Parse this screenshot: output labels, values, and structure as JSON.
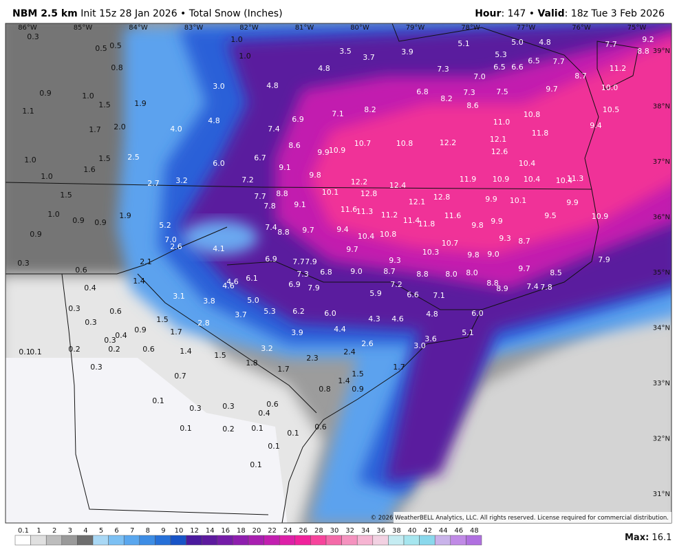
{
  "header": {
    "model": "NBM 2.5 km",
    "init": "Init 15z 28 Jan 2026 • Total Snow (Inches)",
    "hour_key": "Hour",
    "hour_text": ": 147 • ",
    "valid_key": "Valid",
    "valid_text": ": 18z Tue 3 Feb 2026"
  },
  "longitude_labels": [
    "86°W",
    "85°W",
    "84°W",
    "83°W",
    "82°W",
    "81°W",
    "80°W",
    "79°W",
    "78°W",
    "77°W",
    "76°W",
    "75°W"
  ],
  "latitude_labels": [
    "39°N",
    "38°N",
    "37°N",
    "36°N",
    "35°N",
    "34°N",
    "33°N",
    "32°N",
    "31°N"
  ],
  "snow_values": [
    "0.3",
    "0.5",
    "0.5",
    "0.8",
    "1.0",
    "1.0",
    "3.5",
    "3.7",
    "3.9",
    "5.1",
    "5.0",
    "4.8",
    "7.7",
    "9.2",
    "8.8",
    "5.3",
    "6.5",
    "6.5",
    "6.6",
    "7.7",
    "8.7",
    "11.2",
    "4.8",
    "7.3",
    "7.0",
    "7.5",
    "9.7",
    "10.0",
    "0.9",
    "1.0",
    "1.5",
    "1.9",
    "3.0",
    "4.8",
    "6.8",
    "8.2",
    "7.3",
    "8.6",
    "8.2",
    "1.1",
    "1.7",
    "2.0",
    "4.0",
    "4.8",
    "6.9",
    "7.1",
    "7.4",
    "10.8",
    "11.0",
    "10.5",
    "9.4",
    "11.8",
    "8.6",
    "9.9",
    "10.9",
    "10.7",
    "10.8",
    "12.2",
    "12.1",
    "12.6",
    "1.0",
    "1.5",
    "2.5",
    "6.0",
    "6.7",
    "9.1",
    "9.8",
    "10.4",
    "1.6",
    "1.0",
    "2.7",
    "3.2",
    "7.2",
    "12.2",
    "12.4",
    "11.9",
    "10.9",
    "10.4",
    "10.4",
    "11.3",
    "1.5",
    "7.7",
    "8.8",
    "10.1",
    "12.8",
    "12.8",
    "12.1",
    "9.9",
    "10.1",
    "9.9",
    "7.8",
    "9.1",
    "11.6",
    "11.3",
    "11.2",
    "1.0",
    "0.9",
    "0.9",
    "1.9",
    "5.2",
    "11.4",
    "11.8",
    "11.6",
    "9.5",
    "10.9",
    "0.9",
    "7.4",
    "8.8",
    "9.7",
    "9.4",
    "9.8",
    "9.9",
    "7.0",
    "2.6",
    "4.1",
    "10.4",
    "10.8",
    "9.3",
    "8.7",
    "10.7",
    "9.7",
    "10.3",
    "9.8",
    "9.0",
    "2.1",
    "6.9",
    "7.7",
    "7.9",
    "9.3",
    "7.9",
    "0.3",
    "0.6",
    "7.3",
    "6.8",
    "9.0",
    "8.7",
    "8.8",
    "8.0",
    "8.0",
    "9.7",
    "8.5",
    "0.4",
    "1.4",
    "4.6",
    "6.1",
    "4.6",
    "6.9",
    "7.9",
    "7.2",
    "8.8",
    "8.9",
    "7.4",
    "7.8",
    "3.1",
    "3.8",
    "5.0",
    "5.9",
    "6.6",
    "7.1",
    "0.3",
    "0.6",
    "5.3",
    "6.2",
    "6.0",
    "4.8",
    "6.0",
    "3.7",
    "1.5",
    "0.3",
    "2.8",
    "4.3",
    "4.6",
    "0.4",
    "0.9",
    "1.7",
    "3.9",
    "4.4",
    "5.1",
    "3.6",
    "0.3",
    "0.2",
    "0.2",
    "0.6",
    "2.6",
    "3.0",
    "3.2",
    "0.1",
    "0.1",
    "1.4",
    "1.5",
    "2.3",
    "2.4",
    "1.8",
    "0.3",
    "1.7",
    "1.7",
    "1.5",
    "0.7",
    "1.4",
    "0.8",
    "0.9",
    "0.1",
    "0.6",
    "0.3",
    "0.3",
    "0.4",
    "0.1",
    "0.2",
    "0.1",
    "0.1",
    "0.6",
    "0.1",
    "0.1"
  ],
  "copyright": "© 2026 WeatherBELL Analytics, LLC. All rights reserved. License required for commercial distribution.",
  "colorbar": {
    "labels": [
      "0.1",
      "1",
      "2",
      "3",
      "4",
      "5",
      "6",
      "7",
      "8",
      "9",
      "10",
      "12",
      "14",
      "16",
      "18",
      "20",
      "22",
      "24",
      "26",
      "28",
      "30",
      "32",
      "34",
      "36",
      "38",
      "40",
      "42",
      "44",
      "46",
      "48"
    ],
    "colors": [
      "#ffffff",
      "#e0e0e0",
      "#bdbdbd",
      "#9a9a9a",
      "#6e6e6e",
      "#a9d8f5",
      "#7cc0f3",
      "#5aa7ee",
      "#3d8de5",
      "#2670d8",
      "#1854c7",
      "#4b1a9e",
      "#5d1a9e",
      "#751ca8",
      "#8e1eae",
      "#a81fb0",
      "#c21fb0",
      "#dd20a8",
      "#f0229c",
      "#f7449c",
      "#f46aa8",
      "#f592bf",
      "#f6b4d2",
      "#f2d1e2",
      "#c5ecf2",
      "#a6e6ef",
      "#8ad8ec",
      "#c9b3ea",
      "#c08ae6",
      "#b070e0"
    ]
  },
  "max_key": "Max:",
  "max_value": " 16.1"
}
